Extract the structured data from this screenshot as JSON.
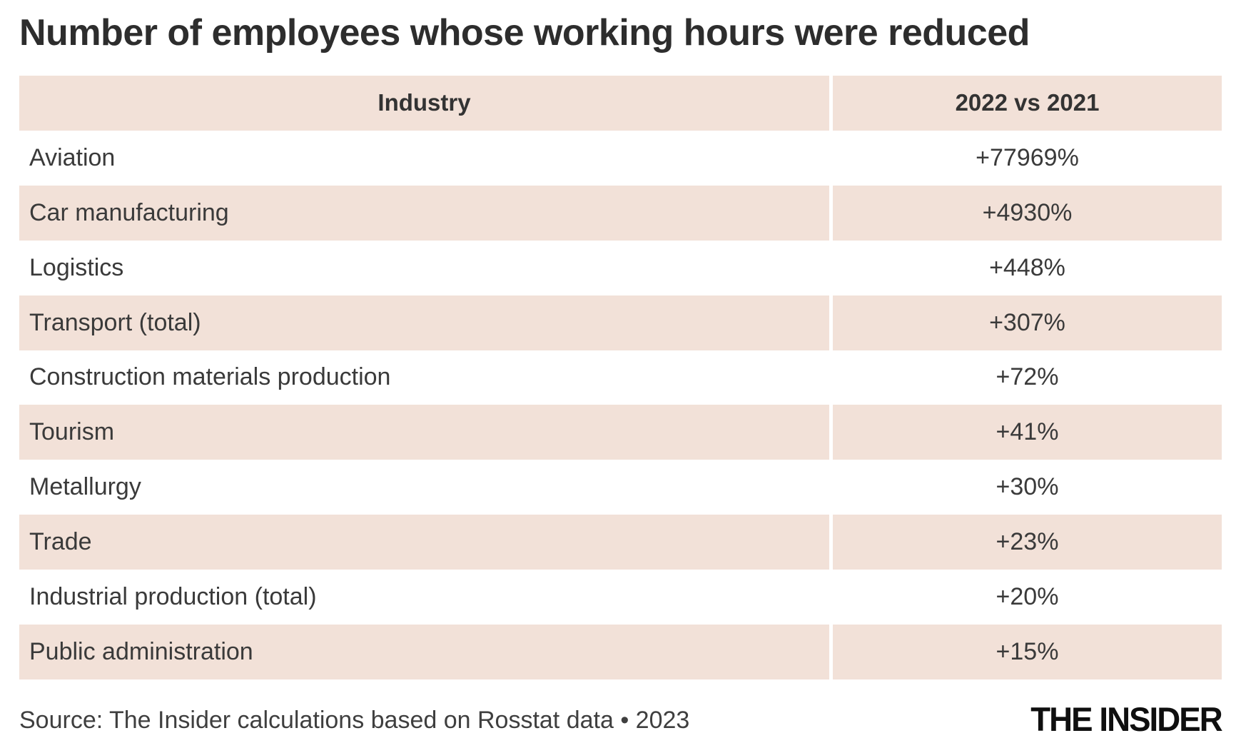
{
  "title": "Number of employees whose working hours were reduced",
  "table": {
    "columns": [
      "Industry",
      "2022 vs 2021"
    ],
    "rows": [
      {
        "industry": "Aviation",
        "value": "+77969%"
      },
      {
        "industry": "Car manufacturing",
        "value": "+4930%"
      },
      {
        "industry": "Logistics",
        "value": "+448%"
      },
      {
        "industry": "Transport (total)",
        "value": "+307%"
      },
      {
        "industry": "Construction materials production",
        "value": "+72%"
      },
      {
        "industry": "Tourism",
        "value": "+41%"
      },
      {
        "industry": "Metallurgy",
        "value": "+30%"
      },
      {
        "industry": "Trade",
        "value": "+23%"
      },
      {
        "industry": "Industrial production (total)",
        "value": "+20%"
      },
      {
        "industry": "Public administration",
        "value": "+15%"
      }
    ]
  },
  "footer": {
    "source": "Source: The Insider calculations based on Rosstat data • 2023",
    "logo": "THE INSIDER"
  },
  "colors": {
    "row_alt_background": "#f2e1d8",
    "text": "#3a3a3a",
    "title_text": "#2d2d2d",
    "logo_text": "#0f0f0f",
    "page_background": "#ffffff"
  },
  "chart_data": {
    "type": "table",
    "title": "Number of employees whose working hours were reduced",
    "columns": [
      "Industry",
      "2022 vs 2021"
    ],
    "categories": [
      "Aviation",
      "Car manufacturing",
      "Logistics",
      "Transport (total)",
      "Construction materials production",
      "Tourism",
      "Metallurgy",
      "Trade",
      "Industrial production (total)",
      "Public administration"
    ],
    "values_pct_change_2022_vs_2021": [
      77969,
      4930,
      448,
      307,
      72,
      41,
      30,
      23,
      20,
      15
    ],
    "value_labels": [
      "+77969%",
      "+4930%",
      "+448%",
      "+307%",
      "+72%",
      "+41%",
      "+30%",
      "+23%",
      "+20%",
      "+15%"
    ],
    "source": "Source: The Insider calculations based on Rosstat data • 2023",
    "layout": "two-column table, alternating white and light pink rows, values centered"
  }
}
